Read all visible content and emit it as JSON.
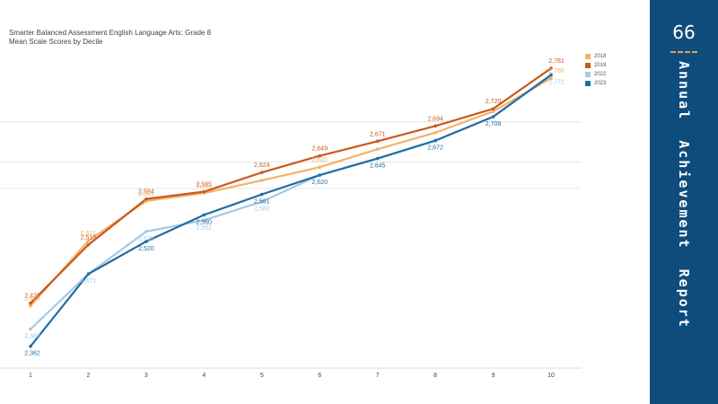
{
  "chart_data": {
    "type": "line",
    "title": "Smarter Balanced Assessment English Language Arts: Grade 8",
    "subtitle": "Mean Scale Scores by Decile",
    "categories": [
      "1",
      "2",
      "3",
      "4",
      "5",
      "6",
      "7",
      "8",
      "9",
      "10"
    ],
    "series": [
      {
        "name": "2018",
        "color": "#f4b26b",
        "values": [
          2423,
          2521,
          2581,
          2593,
          2612,
          2632,
          2659,
          2684,
          2716,
          2766
        ]
      },
      {
        "name": "2019",
        "color": "#c85a1a",
        "values": [
          2427,
          2515,
          2584,
          2595,
          2624,
          2649,
          2671,
          2694,
          2720,
          2781
        ]
      },
      {
        "name": "2022",
        "color": "#a7c8e3",
        "values": [
          2388,
          2471,
          2535,
          2552,
          2580,
          2620,
          2645,
          2672,
          2708,
          2771
        ]
      },
      {
        "name": "2023",
        "color": "#1f6ea3",
        "values": [
          2362,
          2471,
          2520,
          2560,
          2591,
          2620,
          2645,
          2672,
          2708,
          2771
        ]
      }
    ],
    "labels": [
      {
        "series": 1,
        "index": 0,
        "text": "2,427"
      },
      {
        "series": 0,
        "index": 0,
        "text": "2,423"
      },
      {
        "series": 2,
        "index": 0,
        "text": "2,388"
      },
      {
        "series": 3,
        "index": 0,
        "text": "2,362"
      },
      {
        "series": 0,
        "index": 1,
        "text": "2,521"
      },
      {
        "series": 1,
        "index": 1,
        "text": "2,515"
      },
      {
        "series": 2,
        "index": 1,
        "text": "2,471"
      },
      {
        "series": 1,
        "index": 2,
        "text": "2,584"
      },
      {
        "series": 0,
        "index": 2,
        "text": "2,581"
      },
      {
        "series": 3,
        "index": 2,
        "text": "2,520"
      },
      {
        "series": 2,
        "index": 2,
        "text": "2,535"
      },
      {
        "series": 1,
        "index": 3,
        "text": "2,595"
      },
      {
        "series": 0,
        "index": 3,
        "text": "2,593"
      },
      {
        "series": 3,
        "index": 3,
        "text": "2,560"
      },
      {
        "series": 2,
        "index": 3,
        "text": "2,552"
      },
      {
        "series": 1,
        "index": 4,
        "text": "2,624"
      },
      {
        "series": 3,
        "index": 4,
        "text": "2,591"
      },
      {
        "series": 2,
        "index": 4,
        "text": "2,580"
      },
      {
        "series": 1,
        "index": 5,
        "text": "2,649"
      },
      {
        "series": 0,
        "index": 5,
        "text": "2,632"
      },
      {
        "series": 3,
        "index": 5,
        "text": "2,620"
      },
      {
        "series": 1,
        "index": 6,
        "text": "2,671"
      },
      {
        "series": 3,
        "index": 6,
        "text": "2,645"
      },
      {
        "series": 1,
        "index": 7,
        "text": "2,694"
      },
      {
        "series": 3,
        "index": 7,
        "text": "2,672"
      },
      {
        "series": 1,
        "index": 8,
        "text": "2,720"
      },
      {
        "series": 3,
        "index": 8,
        "text": "2,708"
      },
      {
        "series": 1,
        "index": 9,
        "text": "2,781"
      },
      {
        "series": 2,
        "index": 9,
        "text": "2,771"
      },
      {
        "series": 0,
        "index": 9,
        "text": "2,766"
      }
    ],
    "ylim": [
      2340,
      2800
    ],
    "gridlines": [
      2600,
      2640,
      2700
    ],
    "grid": true,
    "legend_position": "top-right",
    "xlabel": "",
    "ylabel": ""
  },
  "side_panel": {
    "page_number": "66",
    "label": "Annual  Achievement  Report"
  }
}
